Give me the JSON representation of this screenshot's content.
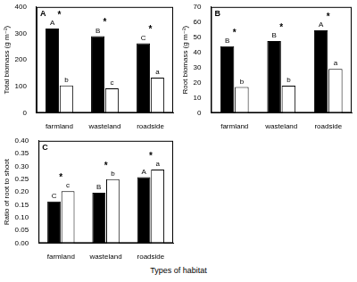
{
  "shared_x_label": "Types of habitat",
  "chart_data": [
    {
      "type": "bar",
      "panel": "A",
      "y_label": "Total biomass (g m⁻²)",
      "categories": [
        "farmland",
        "wasteland",
        "roadside"
      ],
      "series": [
        {
          "color": "#000000",
          "values": [
            318,
            290,
            263
          ],
          "letters": [
            "A",
            "B",
            "C"
          ]
        },
        {
          "color": "#ffffff",
          "values": [
            103,
            92,
            133
          ],
          "letters": [
            "b",
            "c",
            "a"
          ]
        }
      ],
      "significance": [
        "*",
        "*",
        "*"
      ],
      "ylim": [
        0,
        400
      ],
      "yticks": [
        0,
        100,
        200,
        300,
        400
      ],
      "grid": false
    },
    {
      "type": "bar",
      "panel": "B",
      "y_label": "Root biomass (g m⁻²)",
      "categories": [
        "farmland",
        "wasteland",
        "roadside"
      ],
      "series": [
        {
          "color": "#000000",
          "values": [
            44,
            47.5,
            54.5
          ],
          "letters": [
            "B",
            "B",
            "A"
          ]
        },
        {
          "color": "#ffffff",
          "values": [
            17,
            18,
            29
          ],
          "letters": [
            "b",
            "b",
            "a"
          ]
        }
      ],
      "significance": [
        "*",
        "*",
        "*"
      ],
      "ylim": [
        0,
        70
      ],
      "yticks": [
        0,
        10,
        20,
        30,
        40,
        50,
        60,
        70
      ],
      "grid": false
    },
    {
      "type": "bar",
      "panel": "C",
      "y_label": "Ratio of root to shoot",
      "categories": [
        "farmland",
        "wasteland",
        "roadside"
      ],
      "series": [
        {
          "color": "#000000",
          "values": [
            0.163,
            0.197,
            0.258
          ],
          "letters": [
            "C",
            "B",
            "A"
          ]
        },
        {
          "color": "#ffffff",
          "values": [
            0.203,
            0.25,
            0.288
          ],
          "letters": [
            "c",
            "b",
            "a"
          ]
        }
      ],
      "significance": [
        "*",
        "*",
        "*"
      ],
      "ylim": [
        0,
        0.4
      ],
      "yticks": [
        {
          "value": 0,
          "label": "0.00"
        },
        {
          "value": 0.05,
          "label": "0.05"
        },
        {
          "value": 0.1,
          "label": "0.10"
        },
        {
          "value": 0.15,
          "label": "0.15"
        },
        {
          "value": 0.2,
          "label": "0.20"
        },
        {
          "value": 0.25,
          "label": "0.25"
        },
        {
          "value": 0.3,
          "label": "0.30"
        },
        {
          "value": 0.35,
          "label": "0.35"
        },
        {
          "value": 0.4,
          "label": "0.40"
        }
      ],
      "grid": false
    }
  ]
}
